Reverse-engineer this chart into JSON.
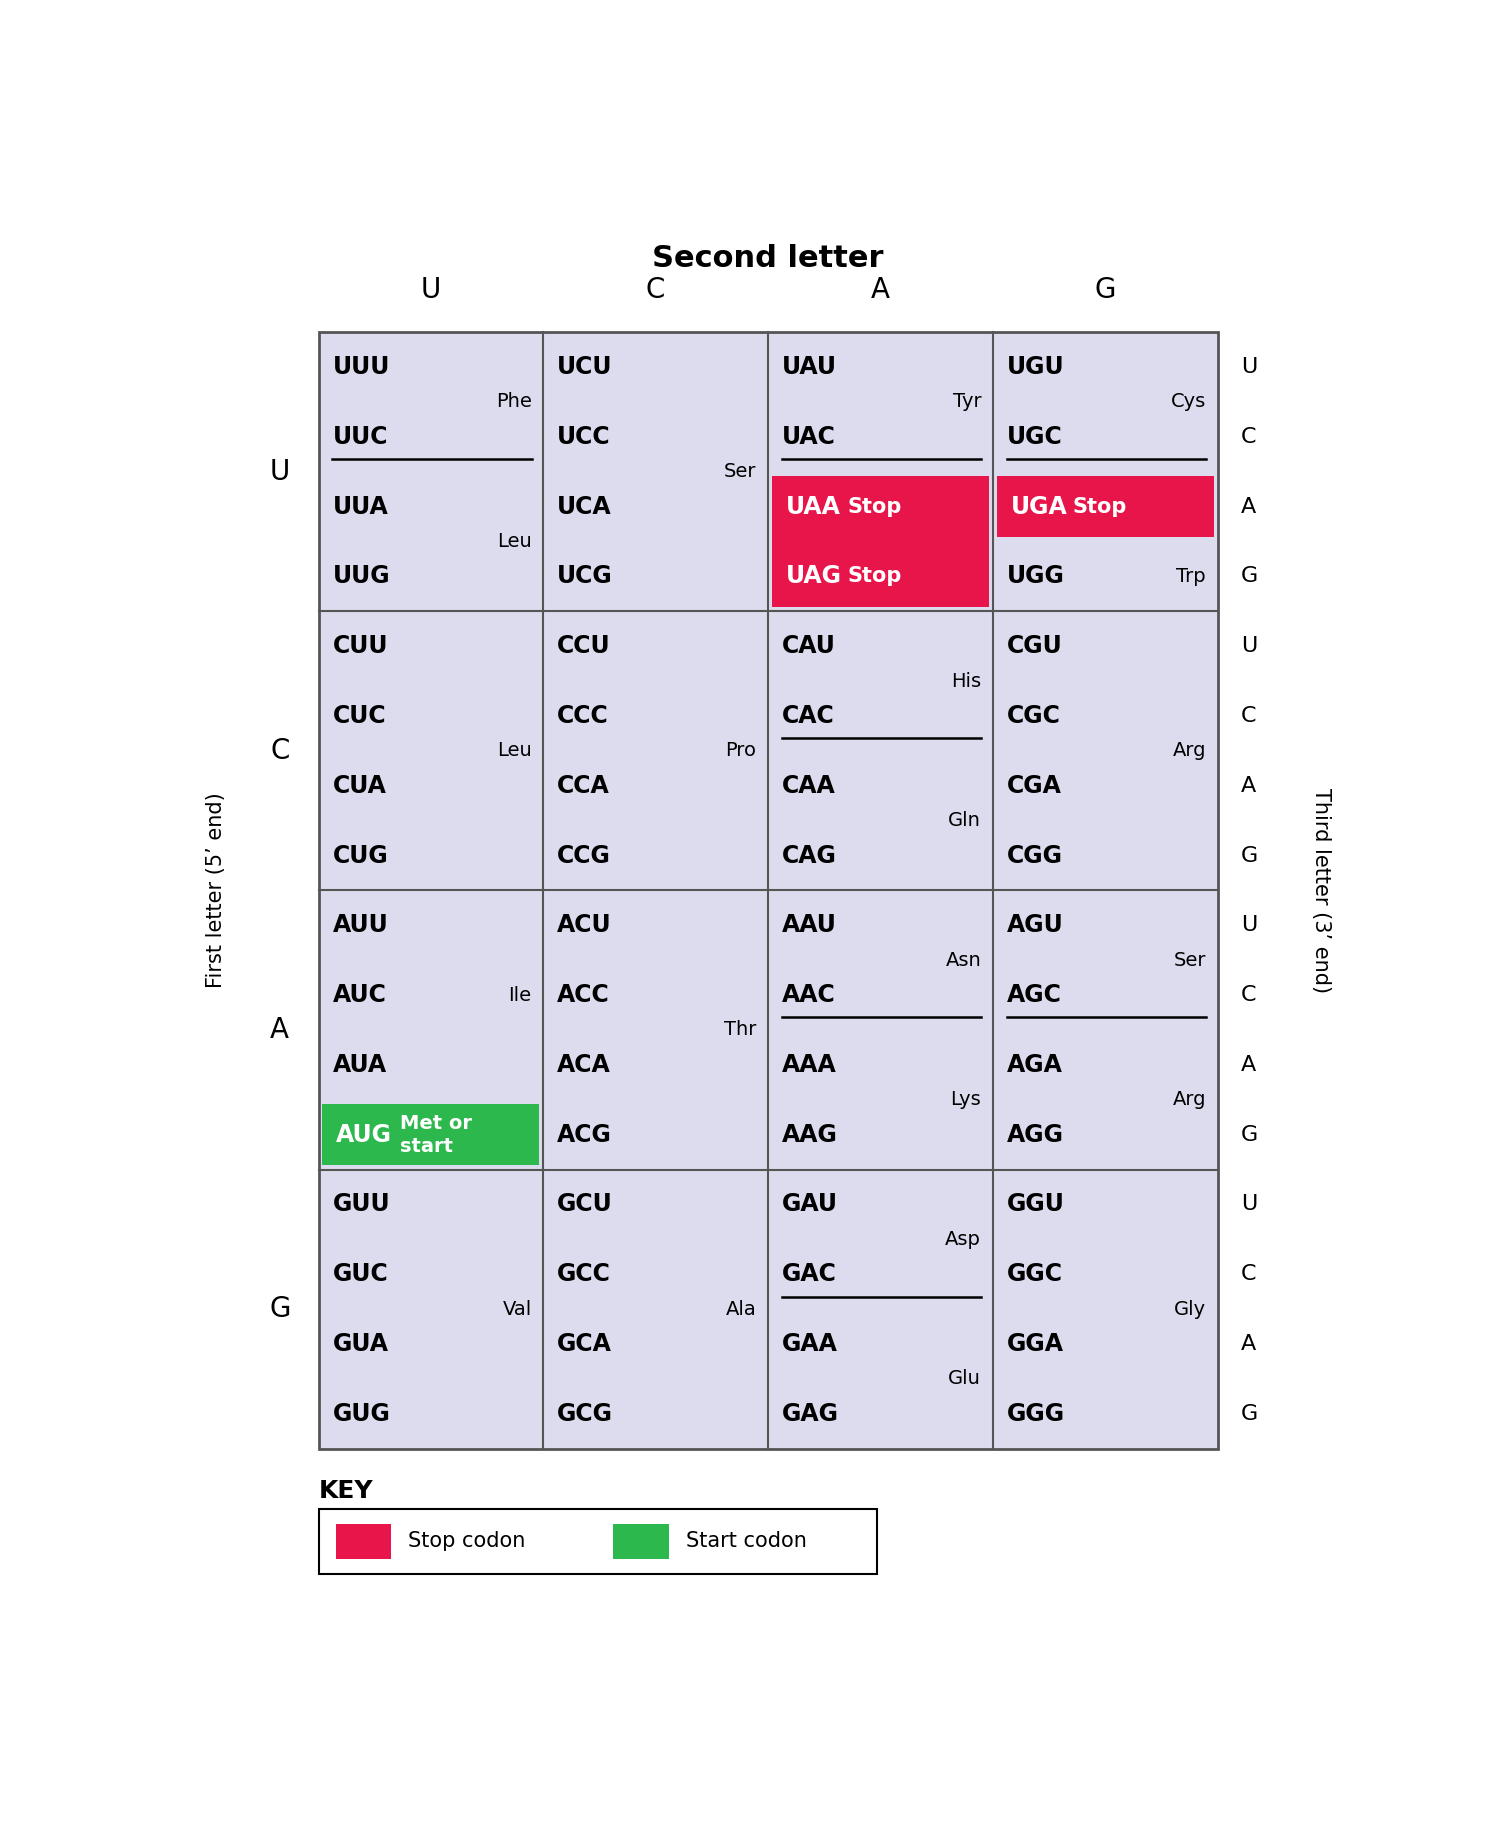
{
  "title": "Second letter",
  "first_letter_label": "First letter (5’ end)",
  "third_letter_label": "Third letter (3’ end)",
  "second_letters": [
    "U",
    "C",
    "A",
    "G"
  ],
  "first_letters": [
    "U",
    "C",
    "A",
    "G"
  ],
  "third_letters": [
    "U",
    "C",
    "A",
    "G"
  ],
  "cell_bg": "#dcdcee",
  "stop_color": "#e8154a",
  "start_color": "#2db84d",
  "border_color": "#555555",
  "table": {
    "U": {
      "U": [
        {
          "codons": [
            "UUU",
            "UUC"
          ],
          "aa": "Phe",
          "underline_after": "UUC",
          "highlight": null
        },
        {
          "codons": [
            "UUA",
            "UUG"
          ],
          "aa": "Leu",
          "underline_after": null,
          "highlight": null
        }
      ],
      "C": [
        {
          "codons": [
            "UCU",
            "UCC",
            "UCA",
            "UCG"
          ],
          "aa": "Ser",
          "underline_after": null,
          "highlight": null
        }
      ],
      "A": [
        {
          "codons": [
            "UAU",
            "UAC"
          ],
          "aa": "Tyr",
          "underline_after": "UAC",
          "highlight": null
        },
        {
          "codons": [
            "UAA",
            "UAG"
          ],
          "aa": "Stop",
          "underline_after": null,
          "highlight": "stop"
        }
      ],
      "G": [
        {
          "codons": [
            "UGU",
            "UGC"
          ],
          "aa": "Cys",
          "underline_after": "UGC",
          "highlight": null
        },
        {
          "codons": [
            "UGA"
          ],
          "aa": "Stop",
          "underline_after": null,
          "highlight": "stop"
        },
        {
          "codons": [
            "UGG"
          ],
          "aa": "Trp",
          "underline_after": null,
          "highlight": null
        }
      ]
    },
    "C": {
      "U": [
        {
          "codons": [
            "CUU",
            "CUC",
            "CUA",
            "CUG"
          ],
          "aa": "Leu",
          "underline_after": null,
          "highlight": null
        }
      ],
      "C": [
        {
          "codons": [
            "CCU",
            "CCC",
            "CCA",
            "CCG"
          ],
          "aa": "Pro",
          "underline_after": null,
          "highlight": null
        }
      ],
      "A": [
        {
          "codons": [
            "CAU",
            "CAC"
          ],
          "aa": "His",
          "underline_after": "CAC",
          "highlight": null
        },
        {
          "codons": [
            "CAA",
            "CAG"
          ],
          "aa": "Gln",
          "underline_after": null,
          "highlight": null
        }
      ],
      "G": [
        {
          "codons": [
            "CGU",
            "CGC",
            "CGA",
            "CGG"
          ],
          "aa": "Arg",
          "underline_after": null,
          "highlight": null
        }
      ]
    },
    "A": {
      "U": [
        {
          "codons": [
            "AUU",
            "AUC",
            "AUA"
          ],
          "aa": "Ile",
          "underline_after": null,
          "highlight": null
        },
        {
          "codons": [
            "AUG"
          ],
          "aa": "Met or\nstart",
          "underline_after": null,
          "highlight": "start"
        }
      ],
      "C": [
        {
          "codons": [
            "ACU",
            "ACC",
            "ACA",
            "ACG"
          ],
          "aa": "Thr",
          "underline_after": null,
          "highlight": null
        }
      ],
      "A": [
        {
          "codons": [
            "AAU",
            "AAC"
          ],
          "aa": "Asn",
          "underline_after": "AAC",
          "highlight": null
        },
        {
          "codons": [
            "AAA",
            "AAG"
          ],
          "aa": "Lys",
          "underline_after": null,
          "highlight": null
        }
      ],
      "G": [
        {
          "codons": [
            "AGU",
            "AGC"
          ],
          "aa": "Ser",
          "underline_after": "AGC",
          "highlight": null
        },
        {
          "codons": [
            "AGA",
            "AGG"
          ],
          "aa": "Arg",
          "underline_after": null,
          "highlight": null
        }
      ]
    },
    "G": {
      "U": [
        {
          "codons": [
            "GUU",
            "GUC",
            "GUA",
            "GUG"
          ],
          "aa": "Val",
          "underline_after": null,
          "highlight": null
        }
      ],
      "C": [
        {
          "codons": [
            "GCU",
            "GCC",
            "GCA",
            "GCG"
          ],
          "aa": "Ala",
          "underline_after": null,
          "highlight": null
        }
      ],
      "A": [
        {
          "codons": [
            "GAU",
            "GAC"
          ],
          "aa": "Asp",
          "underline_after": "GAC",
          "highlight": null
        },
        {
          "codons": [
            "GAA",
            "GAG"
          ],
          "aa": "Glu",
          "underline_after": null,
          "highlight": null
        }
      ],
      "G": [
        {
          "codons": [
            "GGU",
            "GGC",
            "GGA",
            "GGG"
          ],
          "aa": "Gly",
          "underline_after": null,
          "highlight": null
        }
      ]
    }
  }
}
